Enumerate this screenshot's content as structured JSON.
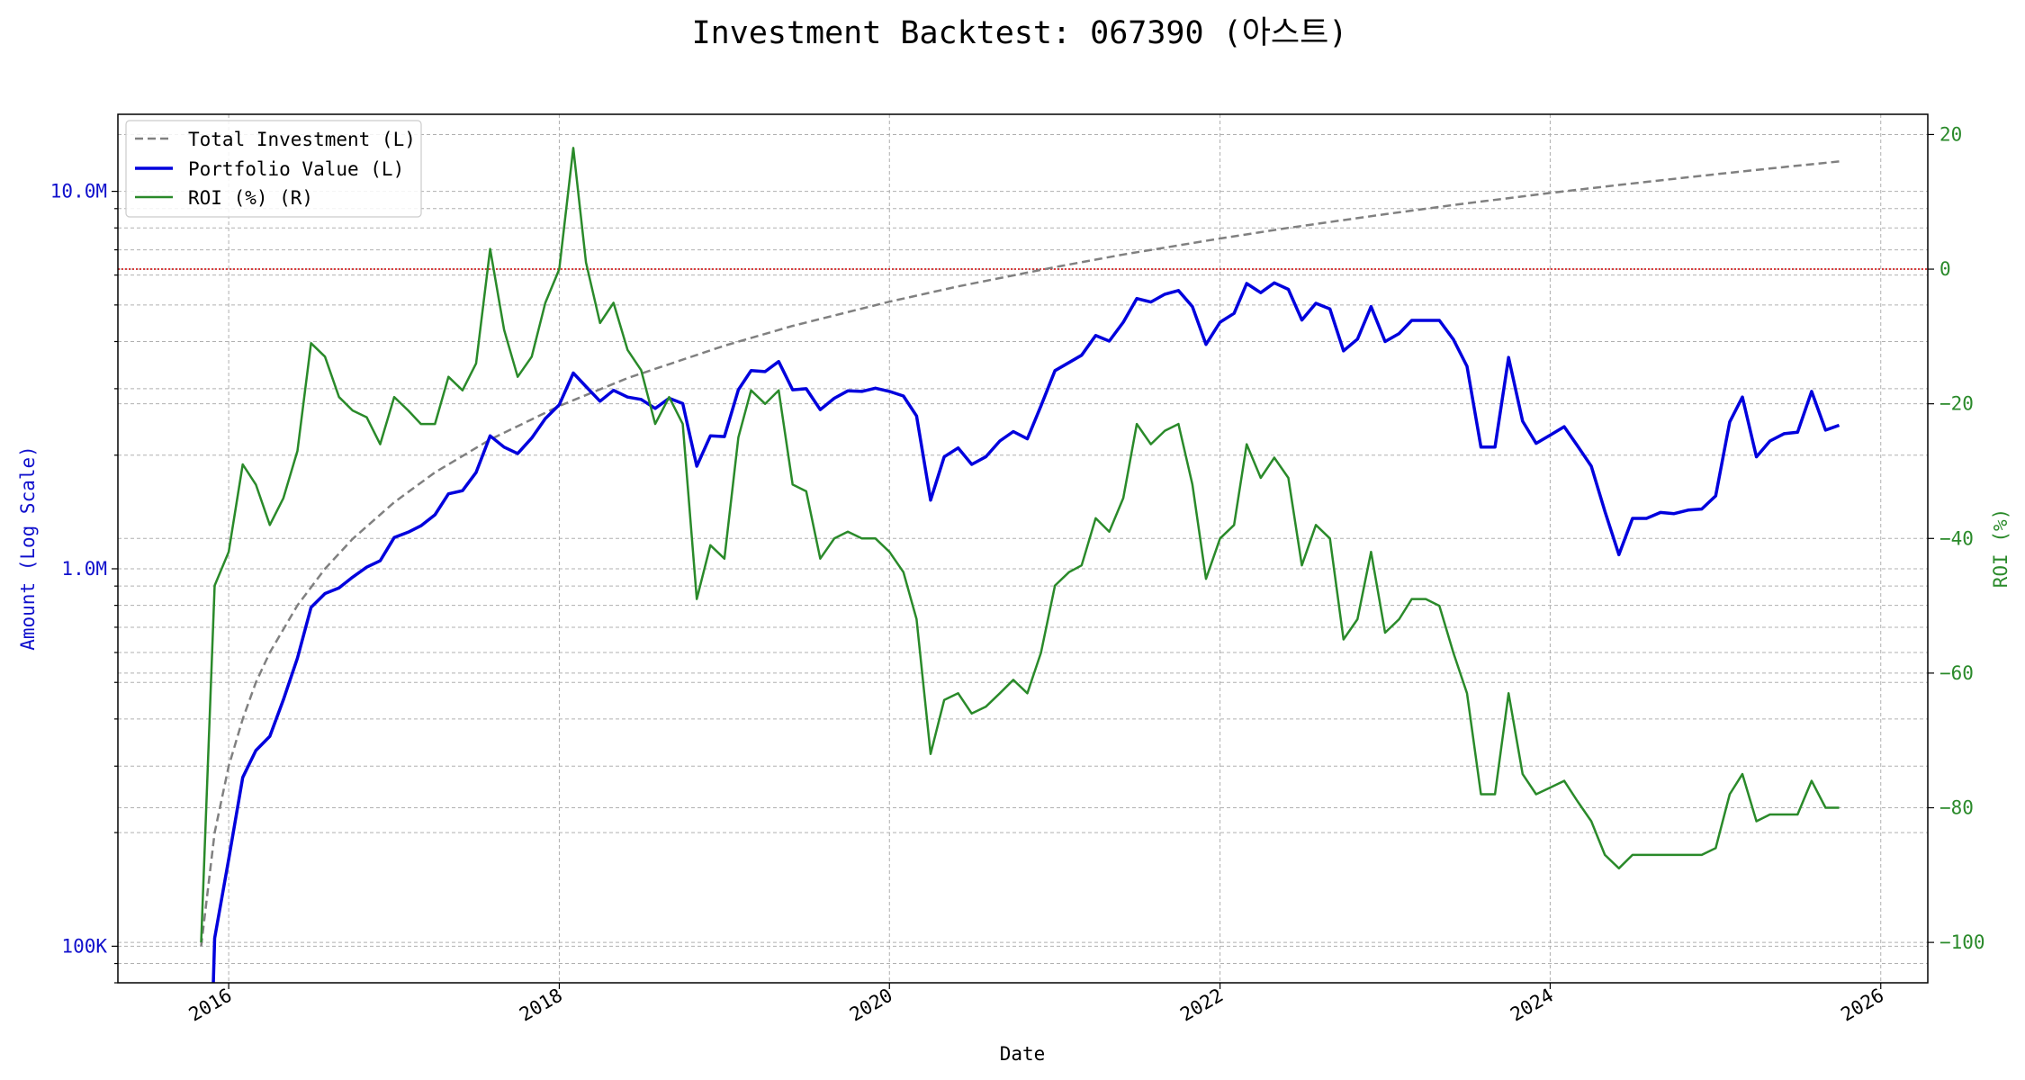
{
  "chart_data": {
    "type": "line",
    "title": "Investment Backtest: 067390 (아스트)",
    "xlabel": "Date",
    "ylabel_left": "Amount (Log Scale)",
    "ylabel_right": "ROI (%)",
    "y_left_scale": "log",
    "y_left_range": [
      80000,
      16000000
    ],
    "y_right_range": [
      -106,
      23
    ],
    "x_range": [
      "2015-05-01",
      "2026-04-15"
    ],
    "y_left_ticks": [
      {
        "value": 100000,
        "label": "100K"
      },
      {
        "value": 1000000,
        "label": "1.0M"
      },
      {
        "value": 10000000,
        "label": "10.0M"
      }
    ],
    "y_right_ticks": [
      {
        "value": 20,
        "label": "20"
      },
      {
        "value": 0,
        "label": "0"
      },
      {
        "value": -20,
        "label": "−20"
      },
      {
        "value": -40,
        "label": "−40"
      },
      {
        "value": -60,
        "label": "−60"
      },
      {
        "value": -80,
        "label": "−80"
      },
      {
        "value": -100,
        "label": "−100"
      }
    ],
    "x_ticks": [
      {
        "date": "2016-01-01",
        "label": "2016"
      },
      {
        "date": "2018-01-01",
        "label": "2018"
      },
      {
        "date": "2020-01-01",
        "label": "2020"
      },
      {
        "date": "2022-01-01",
        "label": "2022"
      },
      {
        "date": "2024-01-01",
        "label": "2024"
      },
      {
        "date": "2026-01-01",
        "label": "2026"
      }
    ],
    "grid": true,
    "legend_position": "top-left",
    "reference_line": {
      "axis": "right",
      "value": 0,
      "color": "#cc0000",
      "style": "dotted"
    },
    "series": [
      {
        "name": "Total Investment (L)",
        "axis": "left",
        "color": "#808080",
        "style": "dashed",
        "x": [
          "2015-11-01",
          "2015-12-01",
          "2016-01-01",
          "2016-02-01",
          "2016-03-01",
          "2016-04-01",
          "2016-06-01",
          "2016-08-01",
          "2016-10-01",
          "2017-01-01",
          "2017-04-01",
          "2017-08-01",
          "2018-01-01",
          "2018-06-01",
          "2019-01-01",
          "2019-06-01",
          "2020-01-01",
          "2020-06-01",
          "2021-01-01",
          "2021-06-01",
          "2022-01-01",
          "2022-06-01",
          "2023-01-01",
          "2023-06-01",
          "2024-01-01",
          "2024-06-01",
          "2025-01-01",
          "2025-06-01",
          "2025-10-01"
        ],
        "values": [
          100000,
          200000,
          300000,
          400000,
          500000,
          600000,
          800000,
          1000000,
          1200000,
          1500000,
          1800000,
          2200000,
          2700000,
          3200000,
          3900000,
          4400000,
          5100000,
          5600000,
          6300000,
          6800000,
          7500000,
          8000000,
          8700000,
          9200000,
          9900000,
          10400000,
          11100000,
          11600000,
          12000000
        ]
      },
      {
        "name": "Portfolio Value (L)",
        "axis": "left",
        "color": "#0000dd",
        "style": "solid",
        "x": [
          "2015-11-25",
          "2015-12-01",
          "2016-01-01",
          "2016-02-01",
          "2016-03-01",
          "2016-04-01",
          "2016-05-01",
          "2016-06-01",
          "2016-07-01",
          "2016-08-01",
          "2016-09-01",
          "2016-10-01",
          "2016-11-01",
          "2016-12-01",
          "2017-01-01",
          "2017-02-01",
          "2017-03-01",
          "2017-04-01",
          "2017-05-01",
          "2017-06-01",
          "2017-07-01",
          "2017-08-01",
          "2017-09-01",
          "2017-10-01",
          "2017-11-01",
          "2017-12-01",
          "2018-01-01",
          "2018-02-01",
          "2018-03-01",
          "2018-04-01",
          "2018-05-01",
          "2018-06-01",
          "2018-07-01",
          "2018-08-01",
          "2018-09-01",
          "2018-10-01",
          "2018-11-01",
          "2018-12-01",
          "2019-01-01",
          "2019-02-01",
          "2019-03-01",
          "2019-04-01",
          "2019-05-01",
          "2019-06-01",
          "2019-07-01",
          "2019-08-01",
          "2019-09-01",
          "2019-10-01",
          "2019-11-01",
          "2019-12-01",
          "2020-01-01",
          "2020-02-01",
          "2020-03-01",
          "2020-04-01",
          "2020-05-01",
          "2020-06-01",
          "2020-07-01",
          "2020-08-01",
          "2020-09-01",
          "2020-10-01",
          "2020-11-01",
          "2020-12-01",
          "2021-01-01",
          "2021-02-01",
          "2021-03-01",
          "2021-04-01",
          "2021-05-01",
          "2021-06-01",
          "2021-07-01",
          "2021-08-01",
          "2021-09-01",
          "2021-10-01",
          "2021-11-01",
          "2021-12-01",
          "2022-01-01",
          "2022-02-01",
          "2022-03-01",
          "2022-04-01",
          "2022-05-01",
          "2022-06-01",
          "2022-07-01",
          "2022-08-01",
          "2022-09-01",
          "2022-10-01",
          "2022-11-01",
          "2022-12-01",
          "2023-01-01",
          "2023-02-01",
          "2023-03-01",
          "2023-04-01",
          "2023-05-01",
          "2023-06-01",
          "2023-07-01",
          "2023-08-01",
          "2023-09-01",
          "2023-10-01",
          "2023-11-01",
          "2023-12-01",
          "2024-01-01",
          "2024-02-01",
          "2024-03-01",
          "2024-04-01",
          "2024-05-01",
          "2024-06-01",
          "2024-07-01",
          "2024-08-01",
          "2024-09-01",
          "2024-10-01",
          "2024-11-01",
          "2024-12-01",
          "2025-01-01",
          "2025-02-01",
          "2025-03-01",
          "2025-04-01",
          "2025-05-01",
          "2025-06-01",
          "2025-07-01",
          "2025-08-01",
          "2025-09-01",
          "2025-10-01"
        ],
        "values": [
          60000,
          105000,
          170000,
          280000,
          330000,
          360000,
          450000,
          580000,
          790000,
          860000,
          890000,
          950000,
          1010000,
          1050000,
          1210000,
          1250000,
          1300000,
          1390000,
          1580000,
          1610000,
          1800000,
          2250000,
          2100000,
          2020000,
          2220000,
          2500000,
          2720000,
          3300000,
          3040000,
          2780000,
          2970000,
          2850000,
          2810000,
          2660000,
          2830000,
          2740000,
          1870000,
          2250000,
          2240000,
          2980000,
          3350000,
          3330000,
          3540000,
          2980000,
          3000000,
          2640000,
          2830000,
          2960000,
          2950000,
          3010000,
          2950000,
          2870000,
          2540000,
          1520000,
          1980000,
          2090000,
          1890000,
          1980000,
          2180000,
          2310000,
          2210000,
          2700000,
          3350000,
          3520000,
          3680000,
          4150000,
          4010000,
          4500000,
          5200000,
          5090000,
          5340000,
          5460000,
          4950000,
          3930000,
          4500000,
          4750000,
          5700000,
          5390000,
          5720000,
          5500000,
          4560000,
          5050000,
          4880000,
          3780000,
          4060000,
          4950000,
          4000000,
          4200000,
          4550000,
          4550000,
          4550000,
          4050000,
          3440000,
          2100000,
          2100000,
          3630000,
          2460000,
          2150000,
          2260000,
          2380000,
          2120000,
          1870000,
          1420000,
          1090000,
          1360000,
          1360000,
          1410000,
          1400000,
          1430000,
          1440000,
          1560000,
          2450000,
          2850000,
          1980000,
          2180000,
          2280000,
          2300000,
          2950000,
          2330000,
          2400000
        ]
      },
      {
        "name": "ROI (%) (R)",
        "axis": "right",
        "color": "#2a8a2a",
        "style": "solid",
        "x": [
          "2015-11-01",
          "2015-12-01",
          "2016-01-01",
          "2016-02-01",
          "2016-03-01",
          "2016-04-01",
          "2016-05-01",
          "2016-06-01",
          "2016-07-01",
          "2016-08-01",
          "2016-09-01",
          "2016-10-01",
          "2016-11-01",
          "2016-12-01",
          "2017-01-01",
          "2017-02-01",
          "2017-03-01",
          "2017-04-01",
          "2017-05-01",
          "2017-06-01",
          "2017-07-01",
          "2017-08-01",
          "2017-09-01",
          "2017-10-01",
          "2017-11-01",
          "2017-12-01",
          "2018-01-01",
          "2018-02-01",
          "2018-03-01",
          "2018-04-01",
          "2018-05-01",
          "2018-06-01",
          "2018-07-01",
          "2018-08-01",
          "2018-09-01",
          "2018-10-01",
          "2018-11-01",
          "2018-12-01",
          "2019-01-01",
          "2019-02-01",
          "2019-03-01",
          "2019-04-01",
          "2019-05-01",
          "2019-06-01",
          "2019-07-01",
          "2019-08-01",
          "2019-09-01",
          "2019-10-01",
          "2019-11-01",
          "2019-12-01",
          "2020-01-01",
          "2020-02-01",
          "2020-03-01",
          "2020-04-01",
          "2020-05-01",
          "2020-06-01",
          "2020-07-01",
          "2020-08-01",
          "2020-09-01",
          "2020-10-01",
          "2020-11-01",
          "2020-12-01",
          "2021-01-01",
          "2021-02-01",
          "2021-03-01",
          "2021-04-01",
          "2021-05-01",
          "2021-06-01",
          "2021-07-01",
          "2021-08-01",
          "2021-09-01",
          "2021-10-01",
          "2021-11-01",
          "2021-12-01",
          "2022-01-01",
          "2022-02-01",
          "2022-03-01",
          "2022-04-01",
          "2022-05-01",
          "2022-06-01",
          "2022-07-01",
          "2022-08-01",
          "2022-09-01",
          "2022-10-01",
          "2022-11-01",
          "2022-12-01",
          "2023-01-01",
          "2023-02-01",
          "2023-03-01",
          "2023-04-01",
          "2023-05-01",
          "2023-06-01",
          "2023-07-01",
          "2023-08-01",
          "2023-09-01",
          "2023-10-01",
          "2023-11-01",
          "2023-12-01",
          "2024-01-01",
          "2024-02-01",
          "2024-03-01",
          "2024-04-01",
          "2024-05-01",
          "2024-06-01",
          "2024-07-01",
          "2024-08-01",
          "2024-09-01",
          "2024-10-01",
          "2024-11-01",
          "2024-12-01",
          "2025-01-01",
          "2025-02-01",
          "2025-03-01",
          "2025-04-01",
          "2025-05-01",
          "2025-06-01",
          "2025-07-01",
          "2025-08-01",
          "2025-09-01",
          "2025-10-01"
        ],
        "values": [
          -100,
          -47,
          -42,
          -29,
          -32,
          -38,
          -34,
          -27,
          -11,
          -13,
          -19,
          -21,
          -22,
          -26,
          -19,
          -21,
          -23,
          -23,
          -16,
          -18,
          -14,
          3,
          -9,
          -16,
          -13,
          -5,
          0,
          18,
          1,
          -8,
          -5,
          -12,
          -15,
          -23,
          -19,
          -23,
          -49,
          -41,
          -43,
          -25,
          -18,
          -20,
          -18,
          -32,
          -33,
          -43,
          -40,
          -39,
          -40,
          -40,
          -42,
          -45,
          -52,
          -72,
          -64,
          -63,
          -66,
          -65,
          -63,
          -61,
          -63,
          -57,
          -47,
          -45,
          -44,
          -37,
          -39,
          -34,
          -23,
          -26,
          -24,
          -23,
          -32,
          -46,
          -40,
          -38,
          -26,
          -31,
          -28,
          -31,
          -44,
          -38,
          -40,
          -55,
          -52,
          -42,
          -54,
          -52,
          -49,
          -49,
          -50,
          -57,
          -63,
          -78,
          -78,
          -63,
          -75,
          -78,
          -77,
          -76,
          -79,
          -82,
          -87,
          -89,
          -87,
          -87,
          -87,
          -87,
          -87,
          -87,
          -86,
          -78,
          -75,
          -82,
          -81,
          -81,
          -81,
          -76,
          -80,
          -80
        ]
      }
    ]
  }
}
